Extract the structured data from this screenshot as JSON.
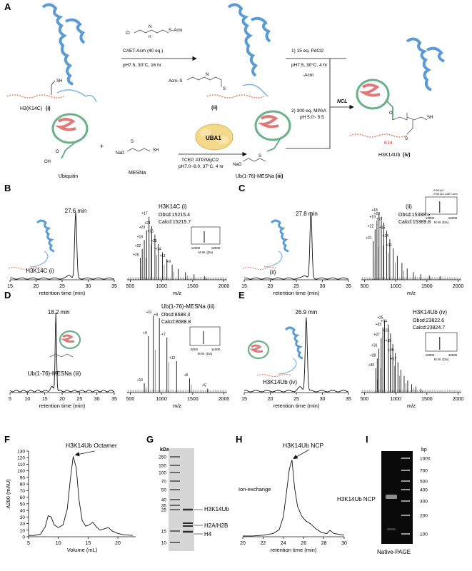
{
  "panels": {
    "A": {
      "letter": "A",
      "h3": "H3(K14C)",
      "h3_num": "(i)",
      "reagent1": "CAET-Acm (40 eq.)",
      "cond1": "pH7.5, 30°C, 16 hr",
      "cl_label": "Cl",
      "acm_label": "S–Acm",
      "nh_label": "N",
      "h_label": "H",
      "sh_label": "SH",
      "acm_s": "Acm–S",
      "s_label": "S",
      "ii_label": "(ii)",
      "step1": "1) 15 eq. PdCl2",
      "step1b": "pH7.5, 30°C, 4 hr",
      "minus_acm": "-Acm",
      "step2": "2) 300 eq. MPAA",
      "step2b": "pH 5.0~ 5.5",
      "ncl": "NCL",
      "ubiquitin": "Ubiquitin",
      "plus": "+",
      "mesna": "MESNa",
      "uba1": "UBA1",
      "cond2a": "TCEP, ATP/MgCl2",
      "cond2b": "pH7.0~8.0, 37°C, 4 hr",
      "ub_mesna": "Ub(1-76)-MESNa",
      "iii_label": "(iii)",
      "product": "H3K14Ub",
      "iv_label": "(iv)",
      "k14": "K14",
      "o_label": "O",
      "oh_label": "OH",
      "nao": "NaO",
      "so_o": "O"
    },
    "B": {
      "letter": "B",
      "time": "27.6 min",
      "sample": "H3K14C (i)",
      "ms_title": "H3K14C (i)",
      "obsd": "Obsd:15215.4",
      "calcd": "Calcd:15215.7",
      "charges": [
        "+20",
        "+22",
        "+18",
        "+23",
        "+17",
        "+24",
        "+15",
        "+25",
        "+14",
        "+11",
        "+9"
      ]
    },
    "C": {
      "letter": "C",
      "time": "27.8 min",
      "sample": "(ii)",
      "ms_title": "(ii)",
      "obsd": "Obsd:15388.5",
      "calcd": "Calcd:15389.8",
      "legend1": "H3K14C",
      "legend2": "H3K14C-CAET-Acm",
      "charges": [
        "+21",
        "+22",
        "+19",
        "+18",
        "+23",
        "+17",
        "+15",
        "+14",
        "+11"
      ]
    },
    "D": {
      "letter": "D",
      "time": "18.2 min",
      "sample": "Ub(1-76)-MESNa (iii)",
      "ms_title": "Ub(1-76)-MESNa (iii)",
      "obsd": "Obsd:8688.3",
      "calcd": "Calcd:8688.8",
      "charges": [
        "+10",
        "+9",
        "+11",
        "+8",
        "+7",
        "+12",
        "+6",
        "+5"
      ]
    },
    "E": {
      "letter": "E",
      "time": "26.9 min",
      "sample": "H3K14Ub (iv)",
      "ms_title": "H3K14Ub (iv)",
      "obsd": "Obsd:23822.6",
      "calcd": "Calcd:23824.7",
      "charges": [
        "+30",
        "+28",
        "+31",
        "+27",
        "+33",
        "+25",
        "+34",
        "+23",
        "+35",
        "+20",
        "+17"
      ]
    },
    "F": {
      "letter": "F",
      "annotation": "H3K14Ub Octamer",
      "ylabel": "A280 (mAU)",
      "xlabel": "Volume (mL)"
    },
    "G": {
      "letter": "G",
      "kda": "kDa",
      "ladder": [
        "250",
        "150",
        "100",
        "70",
        "50",
        "40",
        "35",
        "25",
        "15",
        "10"
      ],
      "band1": "H3K14Ub",
      "band2": "H2A/H2B",
      "band3": "H4"
    },
    "H": {
      "letter": "H",
      "annotation": "H3K14Ub NCP",
      "method": "Ion-exchange",
      "xlabel": "retention time (min)"
    },
    "I": {
      "letter": "I",
      "bp": "bp",
      "ladder": [
        "1000",
        "700",
        "500",
        "400",
        "300",
        "200",
        "100"
      ],
      "label": "H3K14Ub NCP",
      "gel": "Native-PAGE"
    }
  },
  "axes": {
    "hplc_xlabel": "retention time (min)",
    "ms_xlabel": "m/z",
    "mw_label": "M.W. (Da)",
    "hplc_ticks": [
      "15",
      "20",
      "25",
      "30",
      "35"
    ],
    "hplc_d_ticks": [
      "5",
      "10",
      "15",
      "20",
      "25",
      "30",
      "35"
    ],
    "ms_ticks": [
      "500",
      "1000",
      "1500",
      "2000"
    ],
    "inset_bc_ticks": [
      "12000",
      "18000"
    ],
    "inset_c_ticks": [
      "13000",
      "16000"
    ],
    "inset_d_ticks": [
      "5000",
      "11000"
    ],
    "inset_e_ticks": [
      "10000",
      "40000"
    ],
    "f_xticks": [
      "5",
      "10",
      "15",
      "20"
    ],
    "f_yticks": [
      "0",
      "10",
      "20",
      "30",
      "40",
      "50",
      "60",
      "70",
      "80",
      "90",
      "100",
      "110",
      "120",
      "130"
    ],
    "h_xticks": [
      "20",
      "22",
      "24",
      "26",
      "28",
      "30"
    ]
  },
  "chart_data": [
    {
      "type": "line",
      "panel": "B-HPLC",
      "xlabel": "retention time (min)",
      "xlim": [
        15,
        35
      ],
      "peaks": [
        {
          "x": 27.6,
          "label": "27.6 min"
        }
      ]
    },
    {
      "type": "bar",
      "panel": "B-MS",
      "xlabel": "m/z",
      "xlim": [
        450,
        2050
      ],
      "peaks_x": [
        662,
        692,
        725,
        761,
        801,
        845,
        895,
        951,
        1015,
        1087,
        1171,
        1268,
        1384,
        1522,
        1692
      ],
      "peaks_y": [
        0.32,
        0.45,
        0.58,
        0.72,
        0.92,
        0.78,
        0.66,
        0.52,
        0.4,
        0.3,
        0.22,
        0.16,
        0.11,
        0.08,
        0.05
      ]
    },
    {
      "type": "line",
      "panel": "C-HPLC",
      "xlabel": "retention time (min)",
      "xlim": [
        15,
        35
      ],
      "peaks": [
        {
          "x": 27.8,
          "label": "27.8 min"
        }
      ]
    },
    {
      "type": "bar",
      "panel": "C-MS",
      "xlabel": "m/z",
      "xlim": [
        450,
        2050
      ],
      "peaks_x": [
        641,
        670,
        700,
        733,
        770,
        810,
        855,
        906,
        962,
        1026,
        1100,
        1184,
        1283,
        1400,
        1539,
        1710
      ],
      "peaks_y": [
        0.55,
        0.72,
        0.85,
        0.95,
        0.9,
        0.82,
        0.7,
        0.58,
        0.45,
        0.34,
        0.24,
        0.16,
        0.11,
        0.08,
        0.06,
        0.05
      ]
    },
    {
      "type": "line",
      "panel": "D-HPLC",
      "xlabel": "retention time (min)",
      "xlim": [
        5,
        35
      ],
      "peaks": [
        {
          "x": 18.2,
          "label": "18.2 min"
        }
      ]
    },
    {
      "type": "bar",
      "panel": "D-MS",
      "xlabel": "m/z",
      "xlim": [
        450,
        2050
      ],
      "peaks_x": [
        725,
        790,
        870,
        966,
        1087,
        1242,
        1449,
        1739
      ],
      "peaks_y": [
        0.12,
        0.72,
        0.98,
        0.95,
        0.7,
        0.4,
        0.18,
        0.05
      ]
    },
    {
      "type": "line",
      "panel": "E-HPLC",
      "xlabel": "retention time (min)",
      "xlim": [
        15,
        35
      ],
      "peaks": [
        {
          "x": 26.9,
          "label": "26.9 min"
        }
      ]
    },
    {
      "type": "bar",
      "panel": "E-MS",
      "xlabel": "m/z",
      "xlim": [
        450,
        2050
      ],
      "peaks_x": [
        681,
        705,
        731,
        768,
        794,
        822,
        883,
        917,
        954,
        994,
        1036,
        1083,
        1135,
        1192,
        1255,
        1324,
        1402
      ],
      "peaks_y": [
        0.32,
        0.45,
        0.58,
        0.72,
        0.86,
        0.95,
        0.9,
        0.78,
        0.64,
        0.52,
        0.4,
        0.3,
        0.22,
        0.16,
        0.11,
        0.08,
        0.05
      ]
    },
    {
      "type": "line",
      "panel": "F",
      "xlabel": "Volume (mL)",
      "ylabel": "A280 (mAU)",
      "xlim": [
        5,
        23
      ],
      "ylim": [
        0,
        130
      ],
      "x": [
        5,
        6,
        7,
        7.8,
        8.3,
        8.8,
        9.3,
        10,
        10.8,
        11.5,
        12,
        12.5,
        13,
        13.5,
        14,
        14.6,
        15.2,
        15.8,
        16.4,
        17,
        17.7,
        18.4,
        19,
        20,
        21,
        22.5
      ],
      "y": [
        2,
        2,
        4,
        15,
        32,
        30,
        18,
        14,
        18,
        42,
        85,
        122,
        105,
        55,
        25,
        16,
        18,
        22,
        15,
        10,
        12,
        14,
        9,
        5,
        3,
        2
      ]
    },
    {
      "type": "line",
      "panel": "H",
      "xlabel": "retention time (min)",
      "xlim": [
        20,
        30
      ],
      "x": [
        20,
        21,
        22,
        23,
        23.6,
        24,
        24.3,
        24.6,
        24.85,
        25.1,
        25.4,
        25.8,
        26.2,
        26.7,
        27.2,
        27.8,
        28.3,
        28.6,
        29,
        30
      ],
      "y": [
        0.01,
        0.01,
        0.02,
        0.04,
        0.09,
        0.25,
        0.55,
        0.85,
        0.96,
        0.62,
        0.38,
        0.26,
        0.2,
        0.16,
        0.1,
        0.05,
        0.04,
        0.08,
        0.04,
        0.02
      ]
    }
  ]
}
